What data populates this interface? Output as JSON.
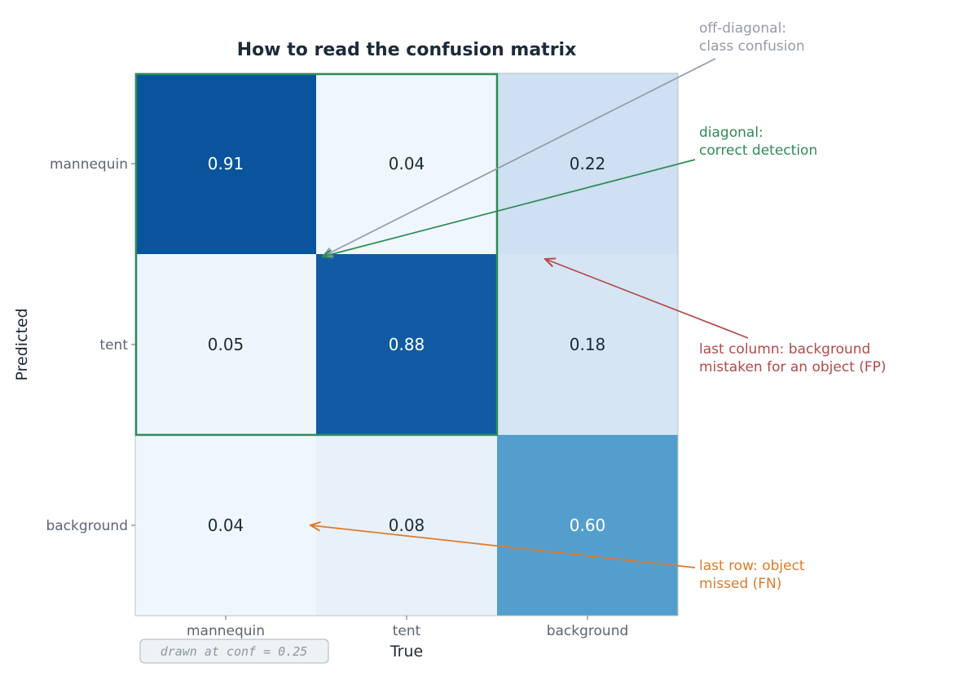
{
  "chart_data": {
    "type": "heatmap",
    "title": "How to read the confusion matrix",
    "xlabel": "True",
    "ylabel": "Predicted",
    "x_categories": [
      "mannequin",
      "tent",
      "background"
    ],
    "y_categories": [
      "mannequin",
      "tent",
      "background"
    ],
    "values": [
      [
        0.91,
        0.04,
        0.22
      ],
      [
        0.05,
        0.88,
        0.18
      ],
      [
        0.04,
        0.08,
        0.6
      ]
    ],
    "value_labels": [
      [
        "0.91",
        "0.04",
        "0.22"
      ],
      [
        "0.05",
        "0.88",
        "0.18"
      ],
      [
        "0.04",
        "0.08",
        "0.60"
      ]
    ],
    "colormap": "Blues",
    "highlight_region": "mannequin/tent block",
    "highlight_color": "#2e8b57",
    "annotations": [
      {
        "lines": [
          "off-diagonal:",
          "class confusion"
        ],
        "color": "#939ca6"
      },
      {
        "lines": [
          "diagonal:",
          "correct detection"
        ],
        "color": "#2e8b57"
      },
      {
        "lines": [
          "last column: background",
          "mistaken for an object (FP)"
        ],
        "color": "#b54a4a"
      },
      {
        "lines": [
          "last row: object",
          "missed (FN)"
        ],
        "color": "#dd7a2c"
      }
    ],
    "note": "drawn at conf = 0.25"
  }
}
